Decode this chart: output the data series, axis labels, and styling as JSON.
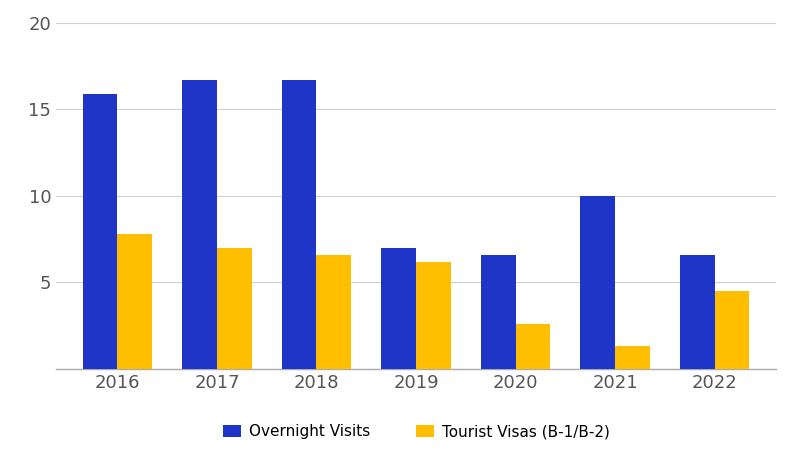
{
  "years": [
    2016,
    2017,
    2018,
    2019,
    2020,
    2021,
    2022
  ],
  "overnight_visits": [
    15.9,
    16.7,
    16.7,
    7.0,
    6.6,
    10.0,
    6.6
  ],
  "tourist_visas": [
    7.8,
    7.0,
    6.6,
    6.2,
    2.6,
    1.3,
    4.5
  ],
  "bar_color_blue": "#1F35C7",
  "bar_color_gold": "#FFBF00",
  "ylim": [
    0,
    20
  ],
  "yticks": [
    0,
    5,
    10,
    15,
    20
  ],
  "ytick_labels": [
    "",
    "5",
    "10",
    "15",
    "20"
  ],
  "legend_labels": [
    "Overnight Visits",
    "Tourist Visas (B-1/B-2)"
  ],
  "background_color": "#ffffff",
  "grid_color": "#d0d0d0",
  "bar_width": 0.35,
  "tick_fontsize": 13,
  "legend_fontsize": 11,
  "tick_label_color": "#555555",
  "bottom_spine_color": "#aaaaaa"
}
